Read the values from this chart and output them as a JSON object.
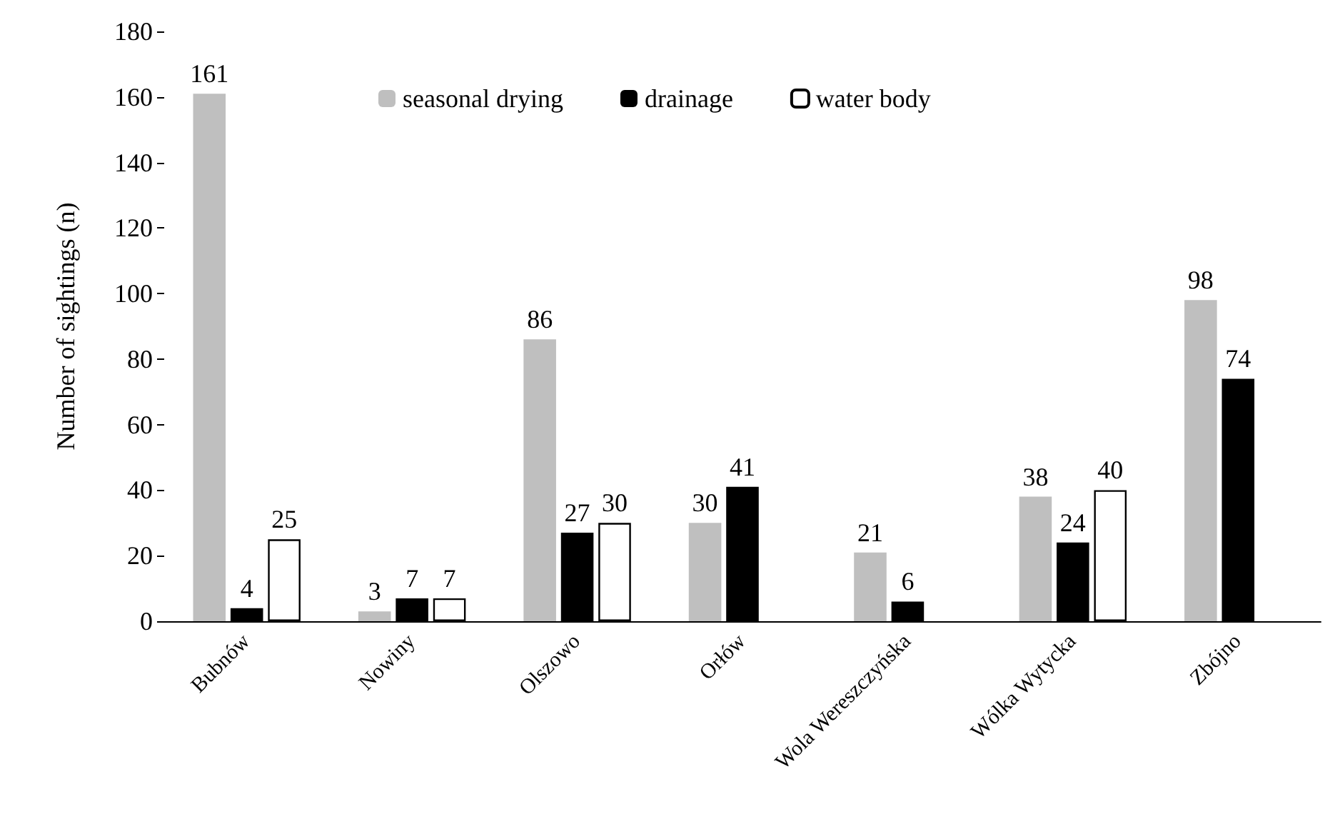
{
  "chart_data": {
    "type": "bar",
    "ylabel": "Number of sightings (n)",
    "categories": [
      "Bubnów",
      "Nowiny",
      "Olszowo",
      "Orłów",
      "Wola Wereszczyńska",
      "Wólka Wytycka",
      "Zbójno"
    ],
    "series": [
      {
        "name": "seasonal drying",
        "color": "#bfbfbf",
        "values": [
          161,
          3,
          86,
          30,
          21,
          38,
          98
        ]
      },
      {
        "name": "drainage",
        "color": "#000000",
        "values": [
          4,
          7,
          27,
          41,
          6,
          24,
          74
        ]
      },
      {
        "name": "water body",
        "color": "#ffffff",
        "values": [
          25,
          7,
          30,
          null,
          null,
          40,
          null
        ]
      }
    ],
    "ylim": [
      0,
      180
    ],
    "yticks": [
      0,
      20,
      40,
      60,
      80,
      100,
      120,
      140,
      160,
      180
    ],
    "grid": false,
    "legend": "top",
    "data_labels": true
  }
}
